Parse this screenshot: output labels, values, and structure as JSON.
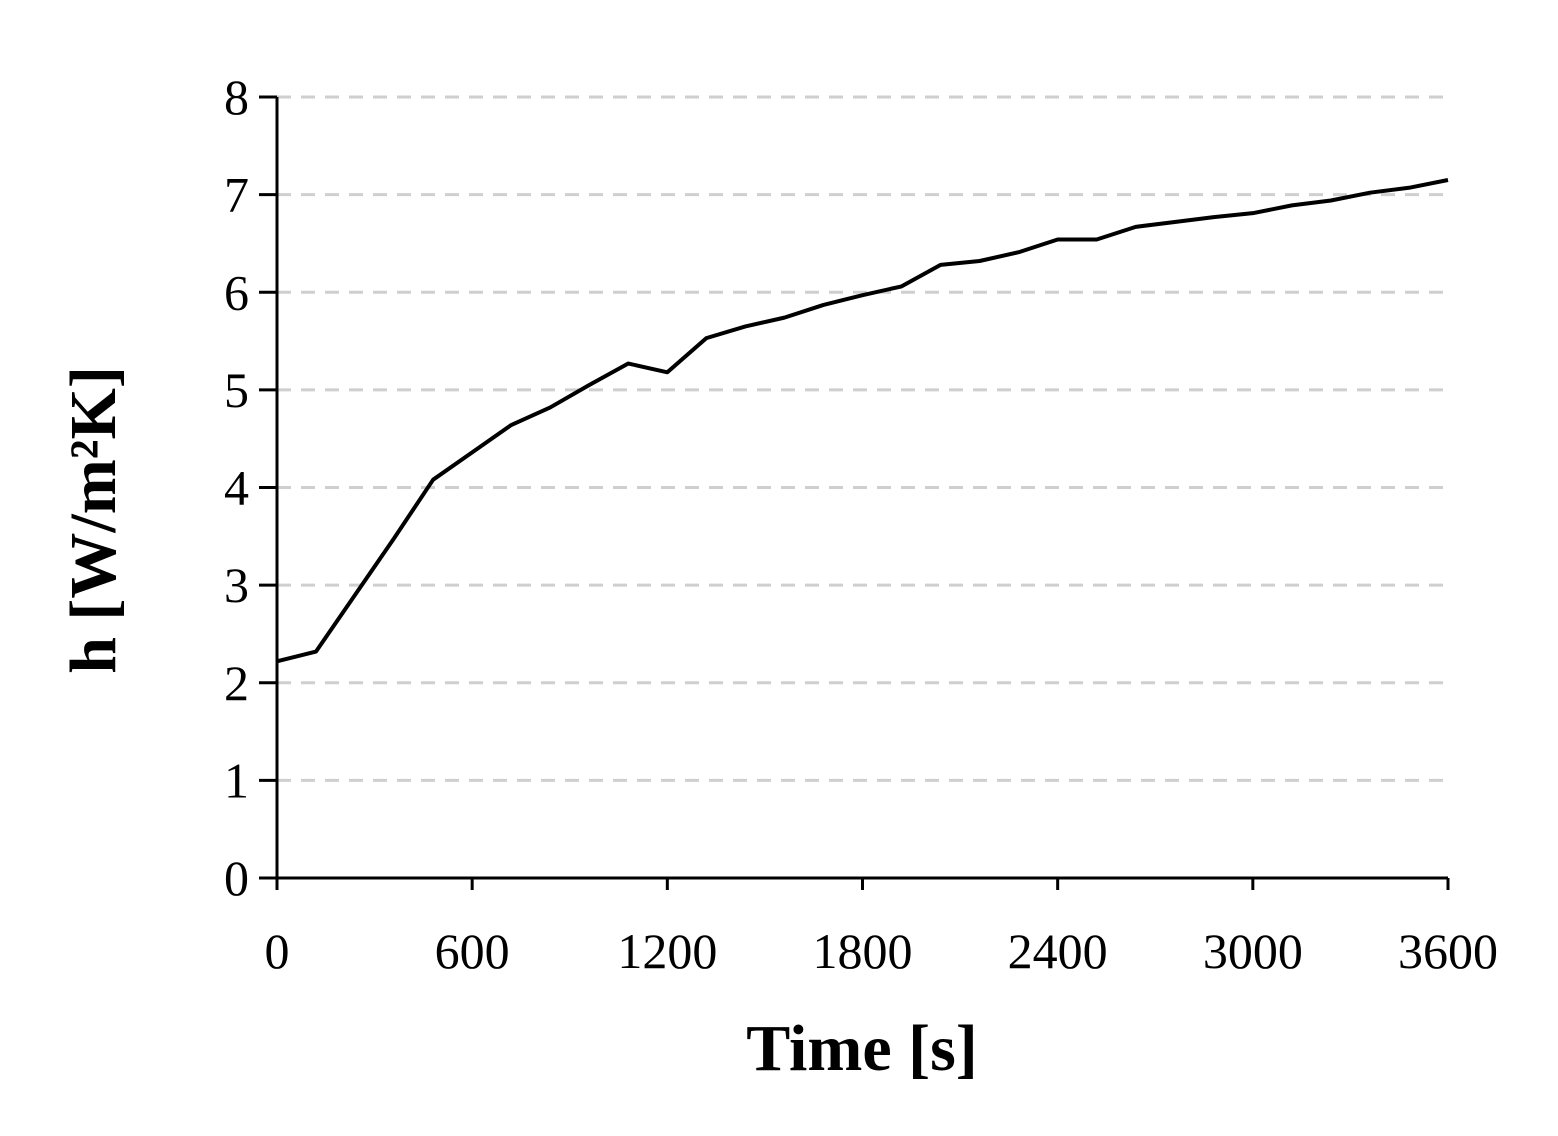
{
  "chart_data": {
    "type": "line",
    "xlabel": "Time [s]",
    "ylabel": "h [W/m²K]",
    "x": [
      0,
      120,
      240,
      360,
      480,
      600,
      720,
      840,
      960,
      1080,
      1200,
      1320,
      1440,
      1560,
      1680,
      1800,
      1920,
      2040,
      2160,
      2280,
      2400,
      2520,
      2640,
      2760,
      2880,
      3000,
      3120,
      3240,
      3360,
      3480,
      3600
    ],
    "series": [
      {
        "color": "#000000",
        "values": [
          2.22,
          2.32,
          2.9,
          3.48,
          4.08,
          4.36,
          4.64,
          4.82,
          5.05,
          5.27,
          5.18,
          5.53,
          5.65,
          5.74,
          5.87,
          5.97,
          6.06,
          6.28,
          6.32,
          6.41,
          6.54,
          6.54,
          6.67,
          6.72,
          6.77,
          6.81,
          6.89,
          6.94,
          7.02,
          7.07,
          7.15
        ]
      }
    ],
    "xlim": [
      0,
      3600
    ],
    "xticks": [
      0,
      600,
      1200,
      1800,
      2400,
      3000,
      3600
    ],
    "ylim": [
      0,
      8
    ],
    "yticks": [
      0,
      1,
      2,
      3,
      4,
      5,
      6,
      7,
      8
    ],
    "grid": true
  }
}
